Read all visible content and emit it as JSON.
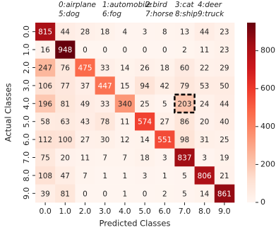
{
  "chart_data": {
    "type": "heatmap",
    "legend_items": [
      [
        "0:airplane",
        "1:automobile",
        "2:bird",
        "3:cat",
        "4:deer"
      ],
      [
        "5:dog",
        "6:fog",
        "7:horse",
        "8:ship",
        "9:truck"
      ]
    ],
    "x_categories": [
      "0.0",
      "1.0",
      "2.0",
      "3.0",
      "4.0",
      "5.0",
      "6.0",
      "7.0",
      "8.0",
      "9.0"
    ],
    "y_categories": [
      "0.0",
      "1.0",
      "2.0",
      "3.0",
      "4.0",
      "5.0",
      "6.0",
      "7.0",
      "8.0",
      "9.0"
    ],
    "x_label": "Predicted Classes",
    "y_label": "Actual Classes",
    "values": [
      [
        815,
        44,
        28,
        18,
        4,
        3,
        8,
        13,
        44,
        23
      ],
      [
        16,
        948,
        0,
        0,
        0,
        0,
        0,
        2,
        11,
        23
      ],
      [
        247,
        76,
        475,
        33,
        14,
        26,
        18,
        60,
        22,
        29
      ],
      [
        106,
        77,
        37,
        447,
        15,
        94,
        42,
        79,
        53,
        50
      ],
      [
        196,
        81,
        49,
        33,
        340,
        25,
        5,
        203,
        24,
        44
      ],
      [
        58,
        63,
        43,
        78,
        11,
        574,
        27,
        86,
        20,
        40
      ],
      [
        112,
        100,
        27,
        30,
        12,
        14,
        551,
        98,
        31,
        25
      ],
      [
        75,
        20,
        11,
        7,
        7,
        18,
        3,
        837,
        3,
        19
      ],
      [
        108,
        47,
        7,
        1,
        1,
        3,
        1,
        5,
        806,
        21
      ],
      [
        39,
        81,
        0,
        0,
        1,
        0,
        2,
        5,
        14,
        861
      ]
    ],
    "colormap": "Reds",
    "clim": [
      0,
      948
    ],
    "cticks": [
      0,
      200,
      400,
      600,
      800
    ],
    "highlight_cell": {
      "row": 4,
      "col": 7
    }
  }
}
